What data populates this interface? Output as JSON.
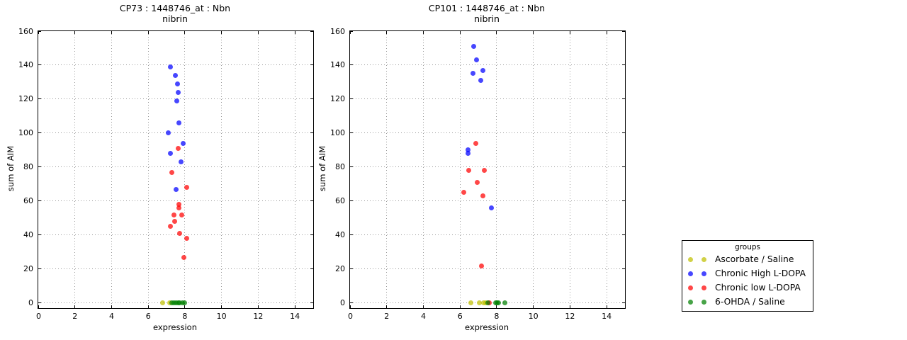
{
  "figure": {
    "background": "#ffffff"
  },
  "legend": {
    "title": "groups",
    "position": "outside-right",
    "entries": [
      {
        "label": "Ascorbate / Saline",
        "color": "#bfbf00"
      },
      {
        "label": "Chronic High L-DOPA",
        "color": "#0000ff"
      },
      {
        "label": "Chronic low L-DOPA",
        "color": "#ff0000"
      },
      {
        "label": "6-OHDA / Saline",
        "color": "#008000"
      }
    ]
  },
  "chart_data": [
    {
      "type": "scatter",
      "title": "CP73 : 1448746_at : Nbn",
      "subtitle": "nibrin",
      "xlabel": "expression",
      "ylabel": "sum of AIM",
      "xlim": [
        0,
        15
      ],
      "ylim": [
        -3,
        160
      ],
      "xticks": [
        0,
        2,
        4,
        6,
        8,
        10,
        12,
        14
      ],
      "yticks": [
        0,
        20,
        40,
        60,
        80,
        100,
        120,
        140,
        160
      ],
      "grid": true,
      "series": [
        {
          "name": "Ascorbate / Saline",
          "color": "#bfbf00",
          "points": [
            [
              6.79,
              0
            ],
            [
              7.18,
              0
            ]
          ]
        },
        {
          "name": "Chronic High L-DOPA",
          "color": "#0000ff",
          "points": [
            [
              7.21,
              139
            ],
            [
              7.48,
              134
            ],
            [
              7.59,
              129
            ],
            [
              7.62,
              124
            ],
            [
              7.55,
              119
            ],
            [
              7.69,
              106
            ],
            [
              7.1,
              100
            ],
            [
              7.92,
              94
            ],
            [
              7.21,
              88
            ],
            [
              7.8,
              83
            ],
            [
              7.53,
              67
            ]
          ]
        },
        {
          "name": "Chronic low L-DOPA",
          "color": "#ff0000",
          "points": [
            [
              7.62,
              91
            ],
            [
              7.3,
              77
            ],
            [
              8.11,
              68
            ],
            [
              7.67,
              58
            ],
            [
              7.69,
              56
            ],
            [
              7.39,
              52
            ],
            [
              7.81,
              52
            ],
            [
              7.46,
              48
            ],
            [
              7.21,
              45
            ],
            [
              7.72,
              41
            ],
            [
              8.11,
              38
            ],
            [
              7.94,
              27
            ]
          ]
        },
        {
          "name": "6-OHDA / Saline",
          "color": "#008000",
          "points": [
            [
              7.3,
              0
            ],
            [
              7.42,
              0
            ],
            [
              7.52,
              0
            ],
            [
              7.62,
              0
            ],
            [
              7.72,
              0
            ],
            [
              7.85,
              0
            ],
            [
              8.0,
              0
            ]
          ]
        }
      ]
    },
    {
      "type": "scatter",
      "title": "CP101 : 1448746_at : Nbn",
      "subtitle": "nibrin",
      "xlabel": "expression",
      "ylabel": "sum of AIM",
      "xlim": [
        0,
        15
      ],
      "ylim": [
        -3,
        160
      ],
      "xticks": [
        0,
        2,
        4,
        6,
        8,
        10,
        12,
        14
      ],
      "yticks": [
        0,
        20,
        40,
        60,
        80,
        100,
        120,
        140,
        160
      ],
      "grid": true,
      "series": [
        {
          "name": "Ascorbate / Saline",
          "color": "#bfbf00",
          "points": [
            [
              6.61,
              0
            ],
            [
              7.05,
              0
            ],
            [
              7.29,
              0
            ],
            [
              7.42,
              0
            ]
          ]
        },
        {
          "name": "Chronic High L-DOPA",
          "color": "#0000ff",
          "points": [
            [
              6.74,
              151
            ],
            [
              6.9,
              143
            ],
            [
              7.23,
              137
            ],
            [
              6.72,
              135
            ],
            [
              7.13,
              131
            ],
            [
              6.44,
              90
            ],
            [
              6.45,
              88
            ],
            [
              7.7,
              56
            ]
          ]
        },
        {
          "name": "Chronic low L-DOPA",
          "color": "#ff0000",
          "points": [
            [
              6.88,
              94
            ],
            [
              6.46,
              78
            ],
            [
              7.33,
              78
            ],
            [
              6.94,
              71
            ],
            [
              6.2,
              65
            ],
            [
              7.26,
              63
            ],
            [
              7.19,
              22
            ],
            [
              7.58,
              0
            ]
          ]
        },
        {
          "name": "6-OHDA / Saline",
          "color": "#008000",
          "points": [
            [
              7.5,
              0
            ],
            [
              7.95,
              0
            ],
            [
              8.03,
              0
            ],
            [
              8.1,
              0
            ],
            [
              8.46,
              0
            ]
          ]
        }
      ]
    }
  ]
}
